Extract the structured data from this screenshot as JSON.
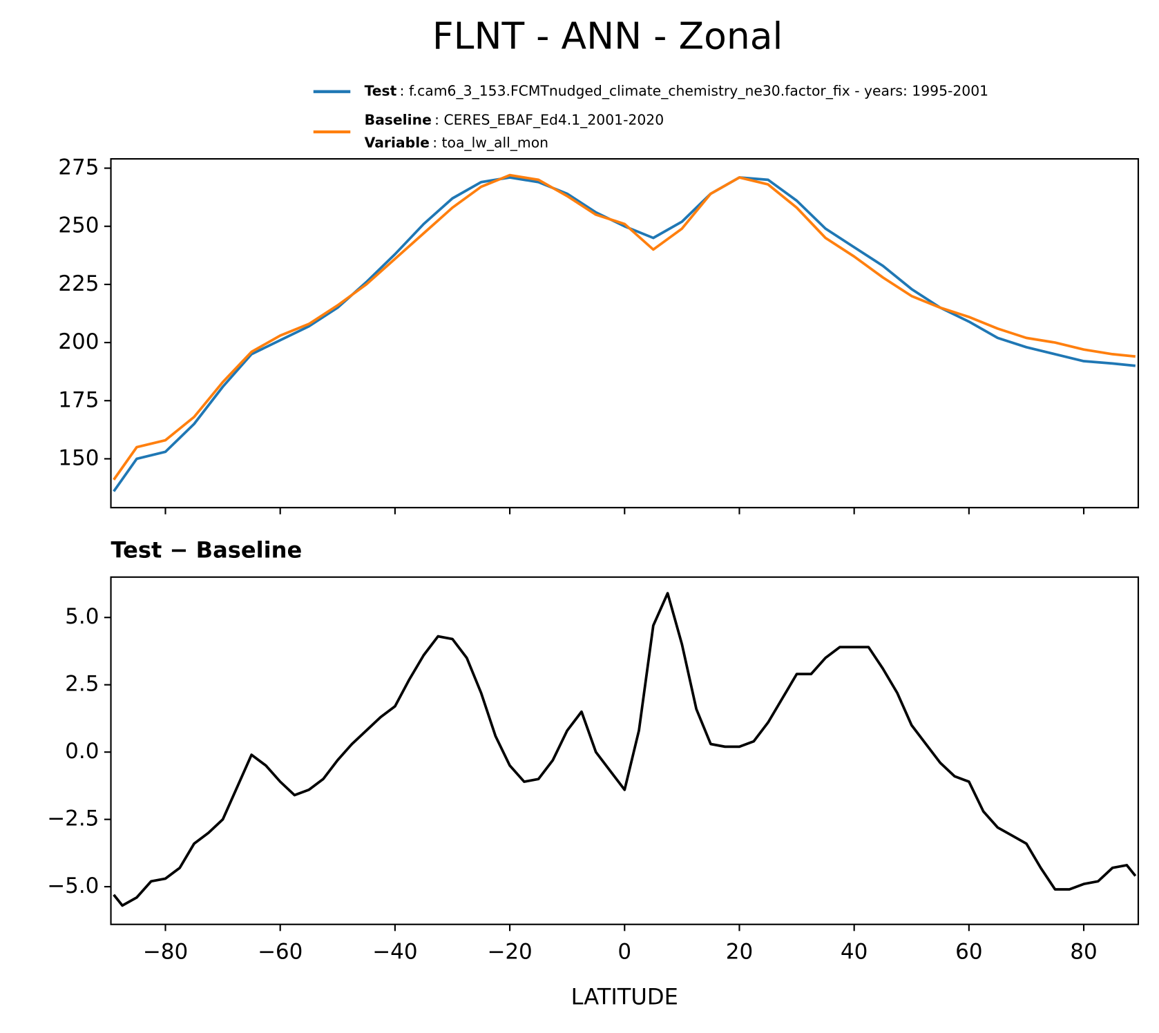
{
  "chart_data": [
    {
      "type": "line",
      "title": "FLNT - ANN - Zonal",
      "x": [
        -89,
        -85,
        -80,
        -75,
        -70,
        -65,
        -60,
        -55,
        -50,
        -45,
        -40,
        -35,
        -30,
        -25,
        -20,
        -15,
        -10,
        -5,
        0,
        5,
        10,
        15,
        20,
        25,
        30,
        35,
        40,
        45,
        50,
        55,
        60,
        65,
        70,
        75,
        80,
        85,
        89
      ],
      "series": [
        {
          "name": "Test",
          "detail": ": f.cam6_3_153.FCMTnudged_climate_chemistry_ne30.factor_fix - years: 1995-2001",
          "color": "#1f77b4",
          "values": [
            136,
            150,
            153,
            165,
            181,
            195,
            201,
            207,
            215,
            226,
            238,
            251,
            262,
            269,
            271,
            269,
            264,
            256,
            250,
            245,
            252,
            264,
            271,
            270,
            261,
            249,
            241,
            233,
            223,
            215,
            209,
            202,
            198,
            195,
            192,
            191,
            190
          ]
        },
        {
          "name": "Baseline",
          "detail": ": CERES_EBAF_Ed4.1_2001-2020",
          "extra_name": "Variable",
          "extra_detail": ": toa_lw_all_mon",
          "color": "#ff7f0e",
          "values": [
            141,
            155,
            158,
            168,
            183,
            196,
            203,
            208,
            216,
            225,
            236,
            247,
            258,
            267,
            272,
            270,
            263,
            255,
            251,
            240,
            249,
            264,
            271,
            268,
            258,
            245,
            237,
            228,
            220,
            215,
            211,
            206,
            202,
            200,
            197,
            195,
            194
          ]
        }
      ],
      "xlim": [
        -89.5,
        89.5
      ],
      "xticks": [
        -80,
        -60,
        -40,
        -20,
        0,
        20,
        40,
        60,
        80
      ],
      "ylim": [
        129,
        279
      ],
      "yticks": [
        150,
        175,
        200,
        225,
        250,
        275
      ]
    },
    {
      "type": "line",
      "title": "Test − Baseline",
      "xlabel": "LATITUDE",
      "x": [
        -89,
        -87.5,
        -85,
        -82.5,
        -80,
        -77.5,
        -75,
        -72.5,
        -70,
        -67.5,
        -65,
        -62.5,
        -60,
        -57.5,
        -55,
        -52.5,
        -50,
        -47.5,
        -45,
        -42.5,
        -40,
        -37.5,
        -35,
        -32.5,
        -30,
        -27.5,
        -25,
        -22.5,
        -20,
        -17.5,
        -15,
        -12.5,
        -10,
        -7.5,
        -5,
        -2.5,
        0,
        2.5,
        5,
        7.5,
        10,
        12.5,
        15,
        17.5,
        20,
        22.5,
        25,
        27.5,
        30,
        32.5,
        35,
        37.5,
        40,
        42.5,
        45,
        47.5,
        50,
        52.5,
        55,
        57.5,
        60,
        62.5,
        65,
        67.5,
        70,
        72.5,
        75,
        77.5,
        80,
        82.5,
        85,
        87.5,
        89
      ],
      "series": [
        {
          "color": "#000000",
          "values": [
            -5.3,
            -5.7,
            -5.4,
            -4.8,
            -4.7,
            -4.3,
            -3.4,
            -3.0,
            -2.5,
            -1.3,
            -0.1,
            -0.5,
            -1.1,
            -1.6,
            -1.4,
            -1.0,
            -0.3,
            0.3,
            0.8,
            1.3,
            1.7,
            2.7,
            3.6,
            4.3,
            4.2,
            3.5,
            2.2,
            0.6,
            -0.5,
            -1.1,
            -1.0,
            -0.3,
            0.8,
            1.5,
            0.0,
            -0.7,
            -1.4,
            0.8,
            4.7,
            5.9,
            4.0,
            1.6,
            0.3,
            0.2,
            0.2,
            0.4,
            1.1,
            2.0,
            2.9,
            2.9,
            3.5,
            3.9,
            3.9,
            3.9,
            3.1,
            2.2,
            1.0,
            0.3,
            -0.4,
            -0.9,
            -1.1,
            -2.2,
            -2.8,
            -3.1,
            -3.4,
            -4.3,
            -5.1,
            -5.1,
            -4.9,
            -4.8,
            -4.3,
            -4.2,
            -4.6
          ]
        }
      ],
      "xlim": [
        -89.5,
        89.5
      ],
      "xticks": [
        {
          "value": -80,
          "label": "−80"
        },
        {
          "value": -60,
          "label": "−60"
        },
        {
          "value": -40,
          "label": "−40"
        },
        {
          "value": -20,
          "label": "−20"
        },
        0,
        20,
        40,
        60,
        80
      ],
      "ylim": [
        -6.4,
        6.5
      ],
      "yticks": [
        {
          "value": -5,
          "label": "−5.0"
        },
        {
          "value": -2.5,
          "label": "−2.5"
        },
        {
          "value": 0,
          "label": "0.0"
        },
        2.5,
        {
          "value": 5,
          "label": "5.0"
        }
      ]
    }
  ]
}
